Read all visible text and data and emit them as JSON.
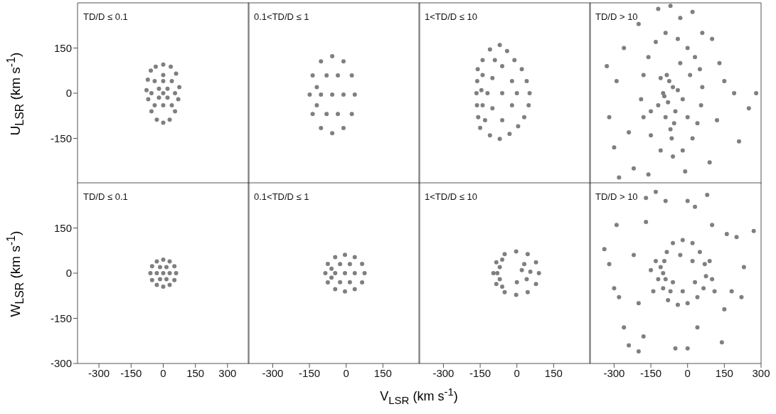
{
  "chart_data": [
    {
      "type": "scatter",
      "title": "TD/D ≤ 0.1",
      "ylabel": "U$_{LSR}$ (km s$^{-1}$)",
      "xlim": [
        -400,
        400
      ],
      "xticks": [
        -300,
        -150,
        0,
        150,
        300
      ],
      "ylim": [
        -300,
        300
      ],
      "yticks": [
        -150,
        0,
        150
      ],
      "tick_labels": "y",
      "marker": "circle",
      "color": "#7f7f7f",
      "x": [
        0,
        35,
        60,
        75,
        70,
        55,
        30,
        0,
        -30,
        -55,
        -70,
        -78,
        -72,
        -58,
        -35,
        0,
        -40,
        0,
        40,
        -40,
        0,
        40,
        -20,
        20,
        -20,
        20,
        0,
        -55,
        55
      ],
      "values": [
        95,
        88,
        65,
        20,
        -20,
        -60,
        -88,
        -98,
        -88,
        -60,
        -20,
        10,
        45,
        75,
        88,
        60,
        40,
        40,
        40,
        -40,
        -40,
        -40,
        15,
        15,
        -15,
        -15,
        0,
        0,
        0
      ]
    },
    {
      "type": "scatter",
      "title": "0.1<TD/D ≤ 1",
      "xlim": [
        -400,
        300
      ],
      "xticks": [
        -300,
        -150,
        0,
        150
      ],
      "ylim": [
        -300,
        300
      ],
      "yticks": [
        -150,
        0,
        150
      ],
      "tick_labels": false,
      "marker": "circle",
      "color": "#7f7f7f",
      "x": [
        35,
        23,
        -11,
        -57,
        -103,
        -137,
        -149,
        -137,
        -103,
        -57,
        -11,
        23,
        -11,
        -34,
        -80,
        -103,
        -80,
        -34,
        -57,
        -120,
        -120
      ],
      "values": [
        -5,
        59,
        106,
        123,
        106,
        59,
        -5,
        -69,
        -116,
        -133,
        -116,
        -69,
        -5,
        59,
        59,
        -5,
        -69,
        -69,
        -5,
        20,
        -40
      ]
    },
    {
      "type": "scatter",
      "title": "1<TD/D ≤ 10",
      "xlim": [
        -400,
        300
      ],
      "xticks": [
        -300,
        -150,
        0,
        150
      ],
      "ylim": [
        -300,
        300
      ],
      "yticks": [
        -150,
        0,
        150
      ],
      "tick_labels": false,
      "marker": "circle",
      "color": "#7f7f7f",
      "x": [
        -160,
        -162,
        -165,
        -163,
        -158,
        -150,
        -140,
        -110,
        -70,
        -40,
        -10,
        20,
        40,
        52,
        48,
        30,
        5,
        -30,
        -70,
        -110,
        -140,
        -140,
        -145,
        -100,
        -100,
        -60,
        -60,
        -60,
        -20,
        -20,
        0,
        -120,
        -130,
        -90
      ],
      "values": [
        80,
        40,
        0,
        -40,
        -80,
        -115,
        110,
        145,
        160,
        140,
        110,
        80,
        40,
        0,
        -40,
        -80,
        -110,
        -135,
        -152,
        -140,
        60,
        -40,
        10,
        50,
        -50,
        90,
        0,
        -90,
        40,
        -40,
        0,
        0,
        -90,
        110
      ]
    },
    {
      "type": "scatter",
      "title": "TD/D > 10",
      "xlim": [
        -400,
        300
      ],
      "xticks": [
        -300,
        -150,
        0,
        150,
        300
      ],
      "ylim": [
        -300,
        300
      ],
      "yticks": [
        -150,
        0,
        150
      ],
      "tick_labels": false,
      "marker": "circle",
      "color": "#7f7f7f",
      "x": [
        -80,
        -100,
        -60,
        -90,
        -70,
        -110,
        -50,
        -120,
        -40,
        -85,
        -65,
        -95,
        -75,
        -55,
        -160,
        -130,
        -90,
        -40,
        0,
        30,
        50,
        60,
        55,
        40,
        20,
        -20,
        -60,
        -110,
        -150,
        -180,
        -190,
        -180,
        -150,
        -20,
        10,
        -30,
        0,
        -330,
        -300,
        -320,
        -290,
        -260,
        -240,
        -220,
        -160,
        -120,
        -70,
        -30,
        20,
        60,
        100,
        130,
        120,
        150,
        190,
        210,
        250,
        280,
        90,
        -10,
        -280,
        -200
      ],
      "values": [
        -30,
        0,
        20,
        -80,
        -120,
        50,
        -60,
        -40,
        10,
        60,
        -150,
        -10,
        40,
        -100,
        120,
        170,
        200,
        180,
        150,
        120,
        80,
        20,
        -40,
        -100,
        -150,
        -190,
        -210,
        -190,
        -140,
        -80,
        -20,
        60,
        -60,
        -20,
        60,
        100,
        -80,
        90,
        -180,
        -80,
        40,
        150,
        -130,
        -250,
        -270,
        280,
        290,
        250,
        270,
        200,
        180,
        100,
        -90,
        40,
        0,
        -160,
        -50,
        0,
        -230,
        -260,
        -280,
        230
      ]
    },
    {
      "type": "scatter",
      "title": "TD/D ≤ 0.1",
      "ylabel": "W$_{LSR}$ (km s$^{-1}$)",
      "xlim": [
        -400,
        400
      ],
      "xticks": [
        -300,
        -150,
        0,
        150,
        300
      ],
      "ylim": [
        -300,
        300
      ],
      "yticks": [
        -300,
        -150,
        0,
        150
      ],
      "marker": "circle",
      "color": "#7f7f7f",
      "x": [
        60,
        52,
        30,
        0,
        -30,
        -52,
        -60,
        -52,
        -30,
        0,
        30,
        52,
        30,
        15,
        -15,
        -30,
        -15,
        15,
        0
      ],
      "values": [
        0,
        23,
        39,
        45,
        39,
        23,
        0,
        -23,
        -39,
        -45,
        -39,
        -23,
        0,
        20,
        20,
        0,
        -20,
        -20,
        0
      ]
    },
    {
      "type": "scatter",
      "title": "0.1<TD/D ≤ 1",
      "xlabel": "V$_{LSR}$ (km s$^{-1}$)",
      "xlim": [
        -400,
        300
      ],
      "xticks": [
        -300,
        -150,
        0,
        150
      ],
      "ylim": [
        -300,
        300
      ],
      "yticks": [
        -300,
        -150,
        0,
        150
      ],
      "tick_labels": "x",
      "marker": "circle",
      "color": "#7f7f7f",
      "x": [
        75,
        65,
        35,
        -5,
        -45,
        -75,
        -85,
        -75,
        -45,
        -5,
        35,
        65,
        35,
        15,
        -25,
        -45,
        -25,
        15,
        -5,
        -60,
        -60
      ],
      "values": [
        0,
        31,
        53,
        61,
        53,
        31,
        0,
        -31,
        -53,
        -61,
        -53,
        -31,
        0,
        30,
        30,
        0,
        -30,
        -30,
        0,
        15,
        -15
      ]
    },
    {
      "type": "scatter",
      "title": "1<TD/D ≤ 10",
      "xlim": [
        -400,
        300
      ],
      "xticks": [
        -300,
        -150,
        0,
        150
      ],
      "ylim": [
        -300,
        300
      ],
      "yticks": [
        -300,
        -150,
        0,
        150
      ],
      "tick_labels": "x",
      "marker": "circle",
      "color": "#7f7f7f",
      "x": [
        90,
        78,
        44,
        -3,
        -50,
        -84,
        -96,
        -84,
        -50,
        -3,
        44,
        78,
        -70,
        -70,
        -60,
        -60,
        -80,
        20,
        40,
        0,
        30,
        55
      ],
      "values": [
        0,
        36,
        63,
        72,
        63,
        36,
        0,
        -36,
        -63,
        -72,
        -63,
        -36,
        20,
        -20,
        45,
        -45,
        0,
        10,
        -20,
        -30,
        30,
        5
      ]
    },
    {
      "type": "scatter",
      "title": "TD/D > 10",
      "xlim": [
        -400,
        300
      ],
      "xticks": [
        -300,
        -150,
        0,
        150,
        300
      ],
      "ylim": [
        -300,
        300
      ],
      "yticks": [
        -300,
        -150,
        0,
        150
      ],
      "tick_labels": "x",
      "marker": "circle",
      "color": "#7f7f7f",
      "x": [
        -100,
        -95,
        -85,
        -60,
        -20,
        20,
        50,
        70,
        75,
        65,
        40,
        0,
        -40,
        -80,
        -100,
        -110,
        -90,
        -70,
        -120,
        -130,
        -150,
        -140,
        -20,
        30,
        20,
        -30,
        -60,
        90,
        100,
        110,
        -340,
        -320,
        -300,
        -280,
        -290,
        -260,
        -240,
        -200,
        -180,
        -170,
        -130,
        -90,
        0,
        30,
        80,
        100,
        160,
        200,
        230,
        220,
        150,
        140,
        40,
        0,
        -50,
        -200,
        -220,
        -170,
        180,
        270
      ],
      "values": [
        0,
        40,
        70,
        100,
        110,
        100,
        70,
        30,
        -10,
        -50,
        -80,
        -100,
        -105,
        -90,
        -50,
        20,
        -20,
        -60,
        -20,
        40,
        10,
        -60,
        -60,
        -30,
        40,
        60,
        -30,
        40,
        -20,
        -60,
        80,
        30,
        -50,
        -80,
        160,
        -180,
        -240,
        -260,
        -210,
        250,
        270,
        240,
        240,
        220,
        260,
        160,
        130,
        120,
        20,
        -80,
        -120,
        -230,
        -180,
        -250,
        -250,
        -100,
        60,
        170,
        -60,
        140
      ]
    }
  ]
}
